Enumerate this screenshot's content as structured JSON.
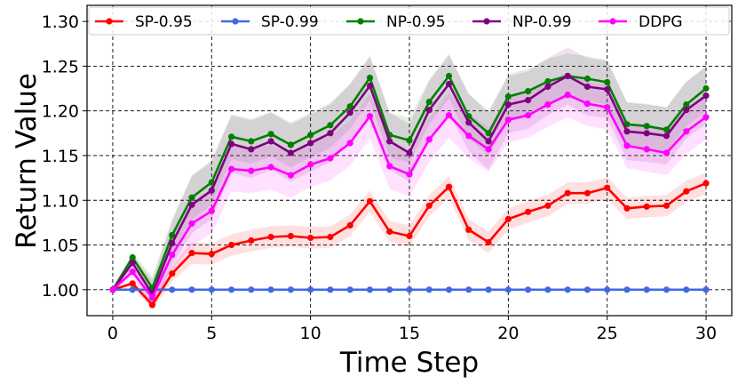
{
  "chart_data": {
    "type": "line",
    "title": "",
    "xlabel": "Time Step",
    "ylabel": "Return Value",
    "xlim": [
      -1.3,
      31.3
    ],
    "ylim": [
      0.971,
      1.318
    ],
    "grid": true,
    "legend_position": "top",
    "x_ticks": [
      0,
      5,
      10,
      15,
      20,
      25,
      30
    ],
    "y_ticks": [
      1.0,
      1.05,
      1.1,
      1.15,
      1.2,
      1.25,
      1.3
    ],
    "x_tick_labels": [
      "0",
      "5",
      "10",
      "15",
      "20",
      "25",
      "30"
    ],
    "y_tick_labels": [
      "1.00",
      "1.05",
      "1.10",
      "1.15",
      "1.20",
      "1.25",
      "1.30"
    ],
    "x": [
      0,
      1,
      2,
      3,
      4,
      5,
      6,
      7,
      8,
      9,
      10,
      11,
      12,
      13,
      14,
      15,
      16,
      17,
      18,
      19,
      20,
      21,
      22,
      23,
      24,
      25,
      26,
      27,
      28,
      29,
      30
    ],
    "series": [
      {
        "name": "SP-0.95",
        "color": "#ff0000",
        "values": [
          1.0,
          1.007,
          0.983,
          1.018,
          1.041,
          1.04,
          1.05,
          1.055,
          1.059,
          1.06,
          1.058,
          1.059,
          1.072,
          1.099,
          1.065,
          1.06,
          1.094,
          1.115,
          1.067,
          1.053,
          1.079,
          1.087,
          1.094,
          1.108,
          1.108,
          1.114,
          1.091,
          1.093,
          1.094,
          1.11,
          1.119
        ],
        "band": 0.012
      },
      {
        "name": "SP-0.99",
        "color": "#4169e1",
        "values": [
          1.0,
          1.0,
          1.0,
          1.0,
          1.0,
          1.0,
          1.0,
          1.0,
          1.0,
          1.0,
          1.0,
          1.0,
          1.0,
          1.0,
          1.0,
          1.0,
          1.0,
          1.0,
          1.0,
          1.0,
          1.0,
          1.0,
          1.0,
          1.0,
          1.0,
          1.0,
          1.0,
          1.0,
          1.0,
          1.0,
          1.0
        ],
        "band": 0.0
      },
      {
        "name": "NP-0.95",
        "color": "#008000",
        "values": [
          1.0,
          1.036,
          1.002,
          1.061,
          1.103,
          1.12,
          1.171,
          1.166,
          1.174,
          1.162,
          1.173,
          1.184,
          1.205,
          1.237,
          1.173,
          1.167,
          1.21,
          1.239,
          1.194,
          1.175,
          1.216,
          1.222,
          1.233,
          1.239,
          1.236,
          1.232,
          1.185,
          1.183,
          1.179,
          1.207,
          1.225
        ],
        "band": 0.025
      },
      {
        "name": "NP-0.99",
        "color": "#800080",
        "values": [
          1.0,
          1.03,
          0.995,
          1.052,
          1.095,
          1.111,
          1.163,
          1.157,
          1.166,
          1.153,
          1.164,
          1.175,
          1.198,
          1.228,
          1.166,
          1.153,
          1.201,
          1.23,
          1.187,
          1.166,
          1.207,
          1.212,
          1.227,
          1.239,
          1.227,
          1.224,
          1.177,
          1.175,
          1.172,
          1.201,
          1.217
        ],
        "band": 0.032
      },
      {
        "name": "DDPG",
        "color": "#ff00ff",
        "values": [
          1.0,
          1.02,
          0.991,
          1.039,
          1.074,
          1.088,
          1.135,
          1.133,
          1.137,
          1.128,
          1.14,
          1.147,
          1.164,
          1.194,
          1.138,
          1.129,
          1.168,
          1.195,
          1.172,
          1.157,
          1.19,
          1.195,
          1.207,
          1.218,
          1.208,
          1.204,
          1.161,
          1.157,
          1.153,
          1.177,
          1.193
        ],
        "band": 0.025
      }
    ]
  }
}
